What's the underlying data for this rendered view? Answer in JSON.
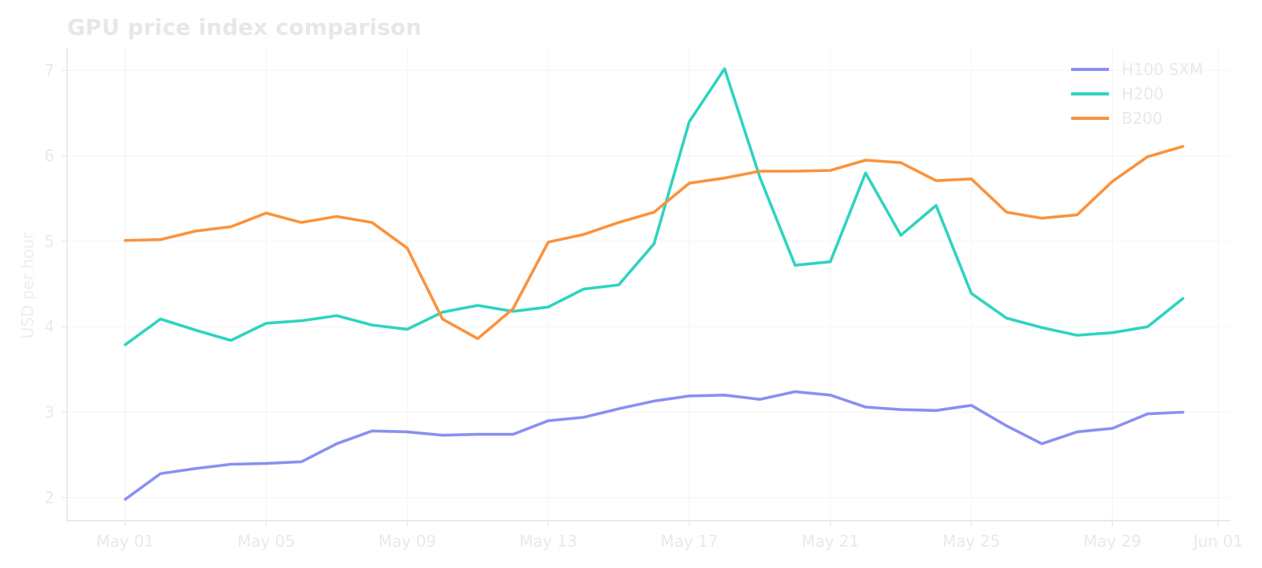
{
  "chart_data": {
    "type": "line",
    "title": "GPU price index comparison",
    "xlabel": "",
    "ylabel": "USD per hour",
    "x_start": "2024-05-01",
    "x": [
      "May 01",
      "May 02",
      "May 03",
      "May 04",
      "May 05",
      "May 06",
      "May 07",
      "May 08",
      "May 09",
      "May 10",
      "May 11",
      "May 12",
      "May 13",
      "May 14",
      "May 15",
      "May 16",
      "May 17",
      "May 18",
      "May 19",
      "May 20",
      "May 21",
      "May 22",
      "May 23",
      "May 24",
      "May 25",
      "May 26",
      "May 27",
      "May 28",
      "May 29",
      "May 30",
      "May 31"
    ],
    "x_ticks": [
      {
        "label": "May 01",
        "day": 0
      },
      {
        "label": "May 05",
        "day": 4
      },
      {
        "label": "May 09",
        "day": 8
      },
      {
        "label": "May 13",
        "day": 12
      },
      {
        "label": "May 17",
        "day": 16
      },
      {
        "label": "May 21",
        "day": 20
      },
      {
        "label": "May 25",
        "day": 24
      },
      {
        "label": "May 29",
        "day": 28
      },
      {
        "label": "Jun 01",
        "day": 31
      }
    ],
    "xlim_days": [
      -1.65,
      31.35
    ],
    "ylim": [
      1.73,
      7.27
    ],
    "y_ticks": [
      2,
      3,
      4,
      5,
      6,
      7
    ],
    "grid": true,
    "legend_position": "top-right",
    "series": [
      {
        "name": "H100 SXM",
        "color": "#8a8ff2",
        "values": [
          1.98,
          2.28,
          2.34,
          2.39,
          2.4,
          2.42,
          2.63,
          2.78,
          2.77,
          2.73,
          2.74,
          2.74,
          2.9,
          2.94,
          3.04,
          3.13,
          3.19,
          3.2,
          3.15,
          3.24,
          3.2,
          3.06,
          3.03,
          3.02,
          3.08,
          2.84,
          2.63,
          2.77,
          2.81,
          2.98,
          3.0
        ]
      },
      {
        "name": "H200",
        "color": "#2dd4bf",
        "values": [
          3.79,
          4.09,
          3.96,
          3.84,
          4.04,
          4.07,
          4.13,
          4.02,
          3.97,
          4.17,
          4.25,
          4.18,
          4.23,
          4.44,
          4.49,
          4.97,
          6.4,
          7.02,
          5.75,
          4.72,
          4.76,
          5.8,
          5.07,
          5.42,
          4.39,
          4.1,
          3.99,
          3.9,
          3.93,
          4.0,
          4.33
        ]
      },
      {
        "name": "B200",
        "color": "#fb923c",
        "values": [
          5.01,
          5.02,
          5.12,
          5.17,
          5.33,
          5.22,
          5.29,
          5.22,
          4.92,
          4.09,
          3.86,
          4.21,
          4.99,
          5.08,
          5.22,
          5.34,
          5.68,
          5.74,
          5.82,
          5.82,
          5.83,
          5.95,
          5.92,
          5.71,
          5.73,
          5.34,
          5.27,
          5.31,
          5.7,
          5.99,
          6.11
        ]
      }
    ]
  }
}
